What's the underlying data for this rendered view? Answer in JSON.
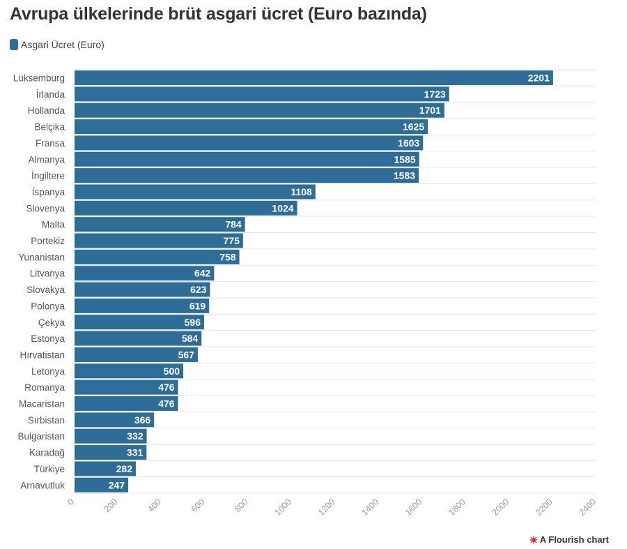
{
  "title": "Avrupa ülkelerinde brüt asgari ücret (Euro bazında)",
  "legend": {
    "label": "Asgari Ücret (Euro)"
  },
  "colors": {
    "bar": "#2f6d99",
    "label": "#ffffff",
    "grid": "#e6e6e6"
  },
  "footer": {
    "text": "A Flourish chart",
    "icon": "flourish-logo-icon"
  },
  "chart_data": {
    "type": "bar",
    "orientation": "horizontal",
    "title": "Avrupa ülkelerinde brüt asgari ücret (Euro bazında)",
    "xlabel": "",
    "ylabel": "",
    "xlim": [
      0,
      2400
    ],
    "ticks": [
      0,
      200,
      400,
      600,
      800,
      1000,
      1200,
      1400,
      1600,
      1800,
      2000,
      2200,
      2400
    ],
    "grid": true,
    "legend_position": "top-left",
    "series": [
      {
        "name": "Asgari Ücret (Euro)",
        "values": [
          2201,
          1723,
          1701,
          1625,
          1603,
          1585,
          1583,
          1108,
          1024,
          784,
          775,
          758,
          642,
          623,
          619,
          596,
          584,
          567,
          500,
          476,
          476,
          366,
          332,
          331,
          282,
          247
        ]
      }
    ],
    "categories": [
      "Lüksemburg",
      "İrlanda",
      "Hollanda",
      "Belçika",
      "Fransa",
      "Almanya",
      "İngiltere",
      "İspanya",
      "Slovenya",
      "Malta",
      "Portekiz",
      "Yunanistan",
      "Litvanya",
      "Slovakya",
      "Polonya",
      "Çekya",
      "Estonya",
      "Hırvatistan",
      "Letonya",
      "Romanya",
      "Macaristan",
      "Sırbistan",
      "Bulgaristan",
      "Karadağ",
      "Türkiye",
      "Arnavutluk"
    ]
  }
}
